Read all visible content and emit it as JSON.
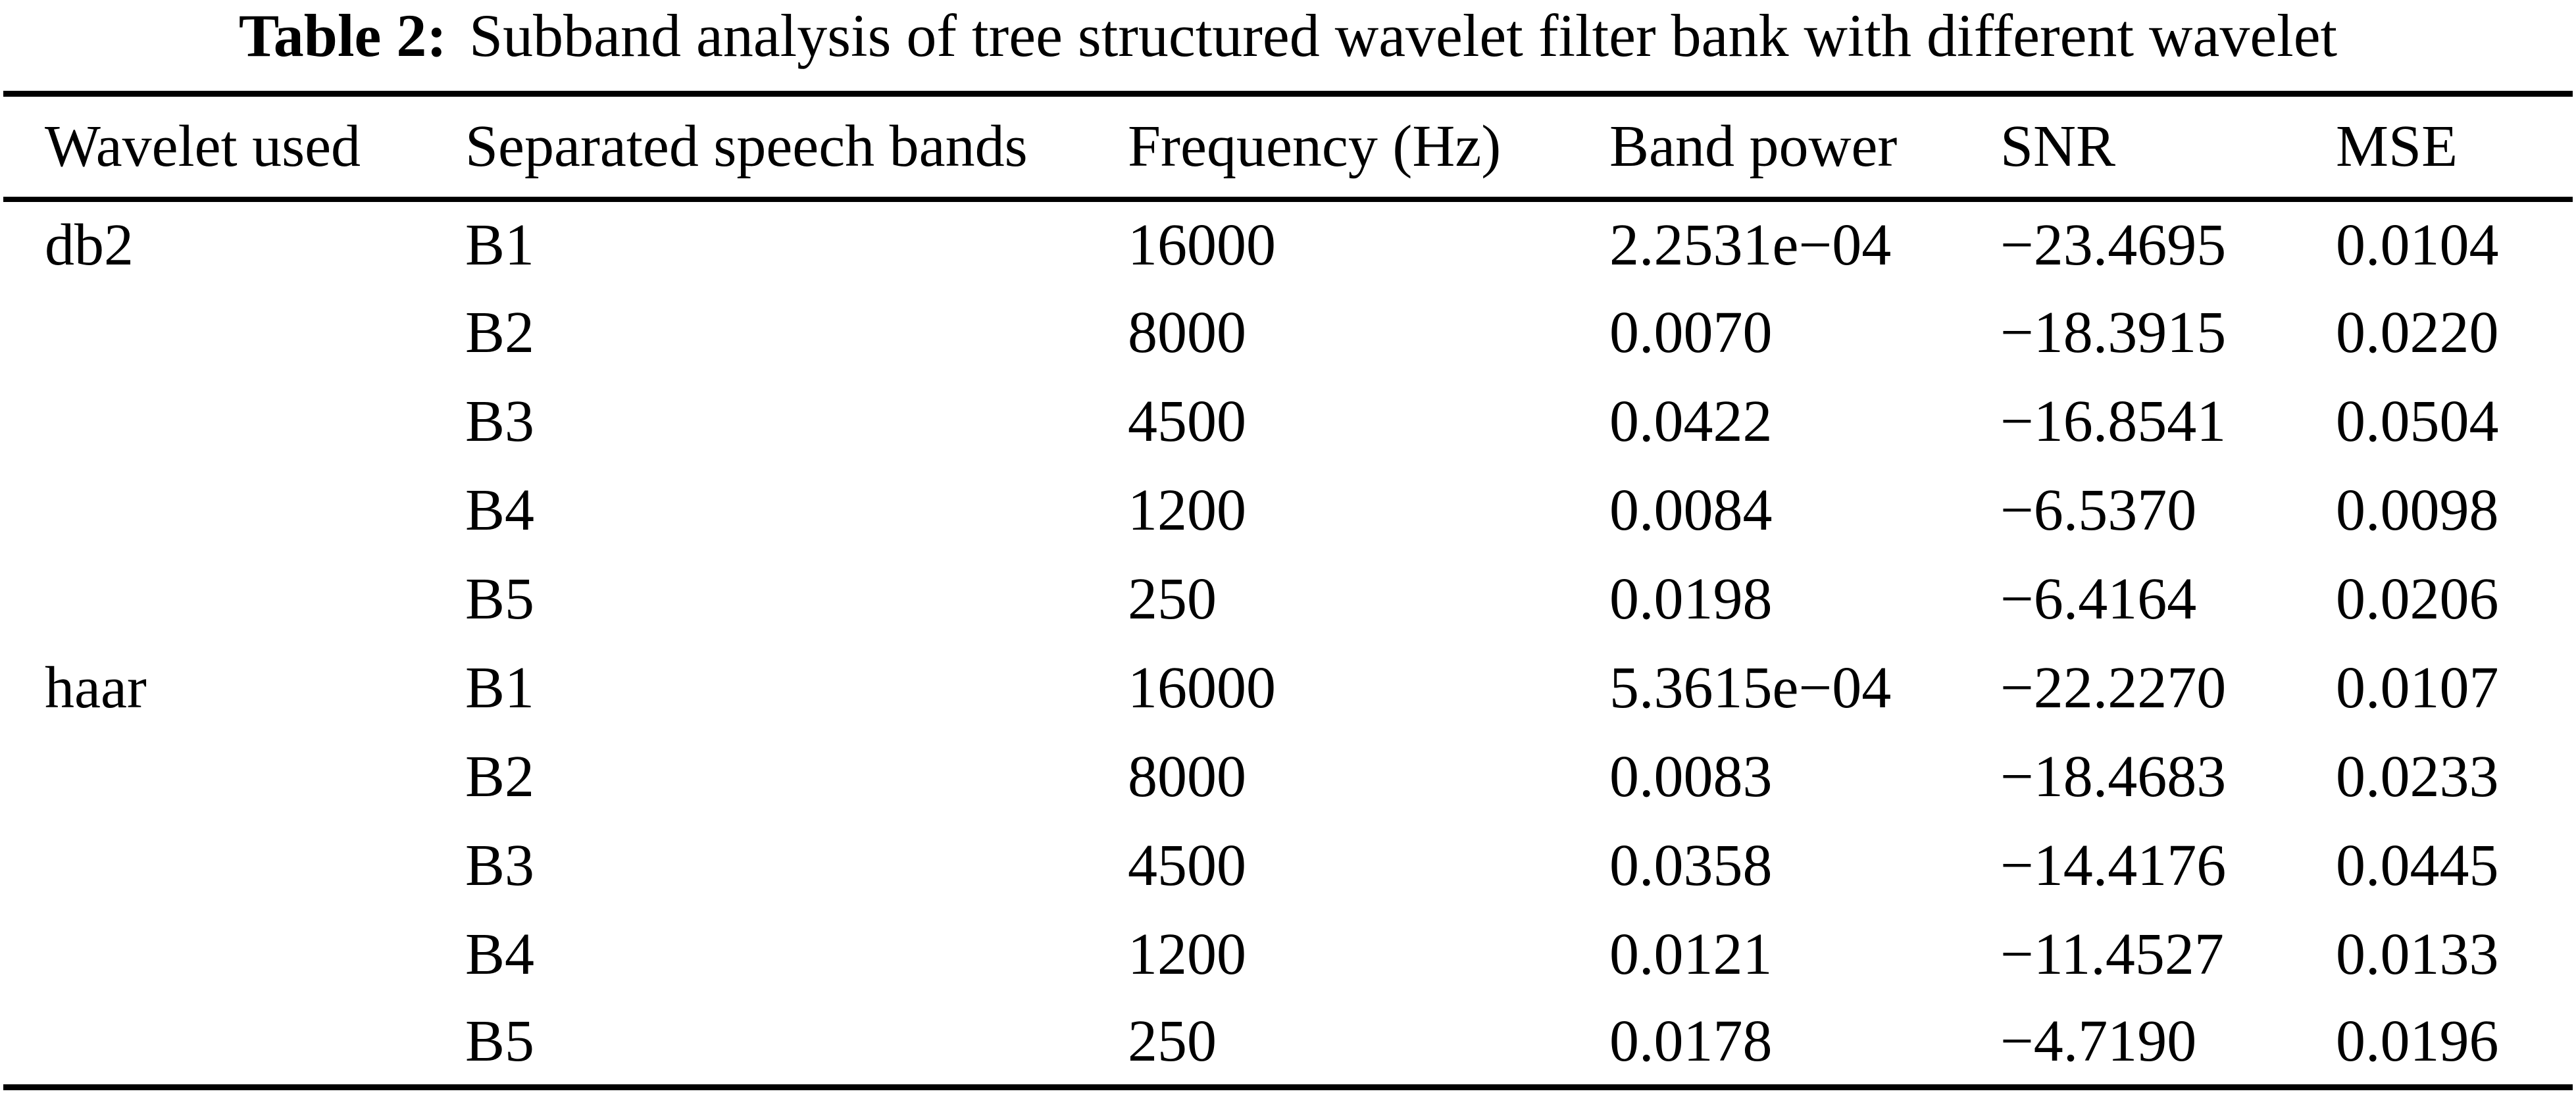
{
  "caption": {
    "label": "Table 2:",
    "text": "Subband analysis of tree structured wavelet filter bank with different wavelet"
  },
  "columns": [
    "Wavelet used",
    "Separated speech bands",
    "Frequency (Hz)",
    "Band power",
    "SNR",
    "MSE"
  ],
  "rows": [
    {
      "wavelet": "db2",
      "band": "B1",
      "frequency": "16000",
      "band_power": "2.2531e−04",
      "snr": "−23.4695",
      "mse": "0.0104"
    },
    {
      "wavelet": "",
      "band": "B2",
      "frequency": "8000",
      "band_power": "0.0070",
      "snr": "−18.3915",
      "mse": "0.0220"
    },
    {
      "wavelet": "",
      "band": "B3",
      "frequency": "4500",
      "band_power": "0.0422",
      "snr": "−16.8541",
      "mse": "0.0504"
    },
    {
      "wavelet": "",
      "band": "B4",
      "frequency": "1200",
      "band_power": "0.0084",
      "snr": "−6.5370",
      "mse": "0.0098"
    },
    {
      "wavelet": "",
      "band": "B5",
      "frequency": "250",
      "band_power": "0.0198",
      "snr": "−6.4164",
      "mse": "0.0206"
    },
    {
      "wavelet": "haar",
      "band": "B1",
      "frequency": "16000",
      "band_power": "5.3615e−04",
      "snr": "−22.2270",
      "mse": "0.0107"
    },
    {
      "wavelet": "",
      "band": "B2",
      "frequency": "8000",
      "band_power": "0.0083",
      "snr": "−18.4683",
      "mse": "0.0233"
    },
    {
      "wavelet": "",
      "band": "B3",
      "frequency": "4500",
      "band_power": "0.0358",
      "snr": "−14.4176",
      "mse": "0.0445"
    },
    {
      "wavelet": "",
      "band": "B4",
      "frequency": "1200",
      "band_power": "0.0121",
      "snr": "−11.4527",
      "mse": "0.0133"
    },
    {
      "wavelet": "",
      "band": "B5",
      "frequency": "250",
      "band_power": "0.0178",
      "snr": "−4.7190",
      "mse": "0.0196"
    }
  ]
}
